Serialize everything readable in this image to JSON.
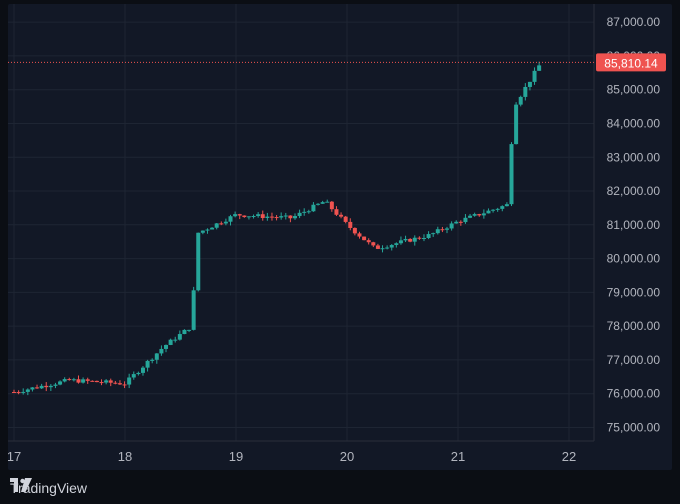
{
  "chart_data": {
    "type": "candlestick",
    "x_ticks": [
      "17",
      "18",
      "19",
      "20",
      "21",
      "22"
    ],
    "y_ticks": [
      "75,000.00",
      "76,000.00",
      "77,000.00",
      "78,000.00",
      "79,000.00",
      "80,000.00",
      "81,000.00",
      "82,000.00",
      "83,000.00",
      "84,000.00",
      "85,000.00",
      "86,000.00",
      "87,000.00"
    ],
    "ylim": [
      74600,
      87300
    ],
    "last_price": 85810.14,
    "last_price_label": "85,810.14",
    "up_color": "#26a69a",
    "down_color": "#ef5350",
    "grid": true,
    "approx_close_path_by_day": [
      {
        "day": 17.0,
        "close": 76050
      },
      {
        "day": 17.5,
        "close": 76400
      },
      {
        "day": 18.0,
        "close": 76300
      },
      {
        "day": 18.35,
        "close": 77400
      },
      {
        "day": 18.6,
        "close": 78000
      },
      {
        "day": 18.65,
        "close": 80750
      },
      {
        "day": 19.0,
        "close": 81300
      },
      {
        "day": 19.5,
        "close": 81200
      },
      {
        "day": 19.8,
        "close": 81700
      },
      {
        "day": 20.0,
        "close": 81000
      },
      {
        "day": 20.25,
        "close": 80300
      },
      {
        "day": 20.75,
        "close": 80700
      },
      {
        "day": 21.0,
        "close": 81100
      },
      {
        "day": 21.45,
        "close": 81600
      },
      {
        "day": 21.5,
        "close": 84500
      },
      {
        "day": 21.75,
        "close": 85810.14
      }
    ]
  },
  "branding": {
    "logo_icon": "tradingview-logo-icon",
    "name": "TradingView"
  }
}
